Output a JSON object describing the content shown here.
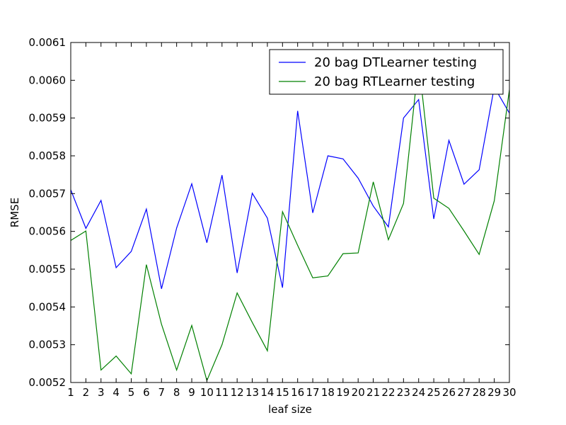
{
  "chart_data": {
    "type": "line",
    "title": "",
    "xlabel": "leaf size",
    "ylabel": "RMSE",
    "xlim": [
      1,
      30
    ],
    "ylim": [
      0.0052,
      0.0061
    ],
    "grid": false,
    "legend_position": "top-right",
    "x": [
      1,
      2,
      3,
      4,
      5,
      6,
      7,
      8,
      9,
      10,
      11,
      12,
      13,
      14,
      15,
      16,
      17,
      18,
      19,
      20,
      21,
      22,
      23,
      24,
      25,
      26,
      27,
      28,
      29,
      30
    ],
    "x_ticks": [
      "1",
      "2",
      "3",
      "4",
      "5",
      "6",
      "7",
      "8",
      "9",
      "10",
      "11",
      "12",
      "13",
      "14",
      "15",
      "16",
      "17",
      "18",
      "19",
      "20",
      "21",
      "22",
      "23",
      "24",
      "25",
      "26",
      "27",
      "28",
      "29",
      "30"
    ],
    "y_ticks": [
      "0.0052",
      "0.0053",
      "0.0054",
      "0.0055",
      "0.0056",
      "0.0057",
      "0.0058",
      "0.0059",
      "0.0060",
      "0.0061"
    ],
    "series": [
      {
        "name": "20 bag DTLearner testing",
        "color": "#0000ff",
        "values": [
          0.00571,
          0.005608,
          0.005682,
          0.005504,
          0.005547,
          0.005659,
          0.005448,
          0.005609,
          0.005726,
          0.00557,
          0.005749,
          0.00549,
          0.005701,
          0.005635,
          0.005451,
          0.005919,
          0.005649,
          0.0058,
          0.005792,
          0.005741,
          0.005667,
          0.005612,
          0.0059,
          0.005949,
          0.005633,
          0.005841,
          0.005725,
          0.005763,
          0.005982,
          0.005913
        ]
      },
      {
        "name": "20 bag RTLearner testing",
        "color": "#008000",
        "values": [
          0.005576,
          0.005601,
          0.005233,
          0.00527,
          0.005223,
          0.005512,
          0.005354,
          0.005233,
          0.005351,
          0.005205,
          0.0053,
          0.005437,
          0.005359,
          0.005284,
          0.005652,
          0.005563,
          0.005477,
          0.005482,
          0.005541,
          0.005543,
          0.005731,
          0.005578,
          0.005674,
          0.00605,
          0.005688,
          0.005661,
          0.005601,
          0.005539,
          0.005681,
          0.005975
        ]
      }
    ]
  }
}
